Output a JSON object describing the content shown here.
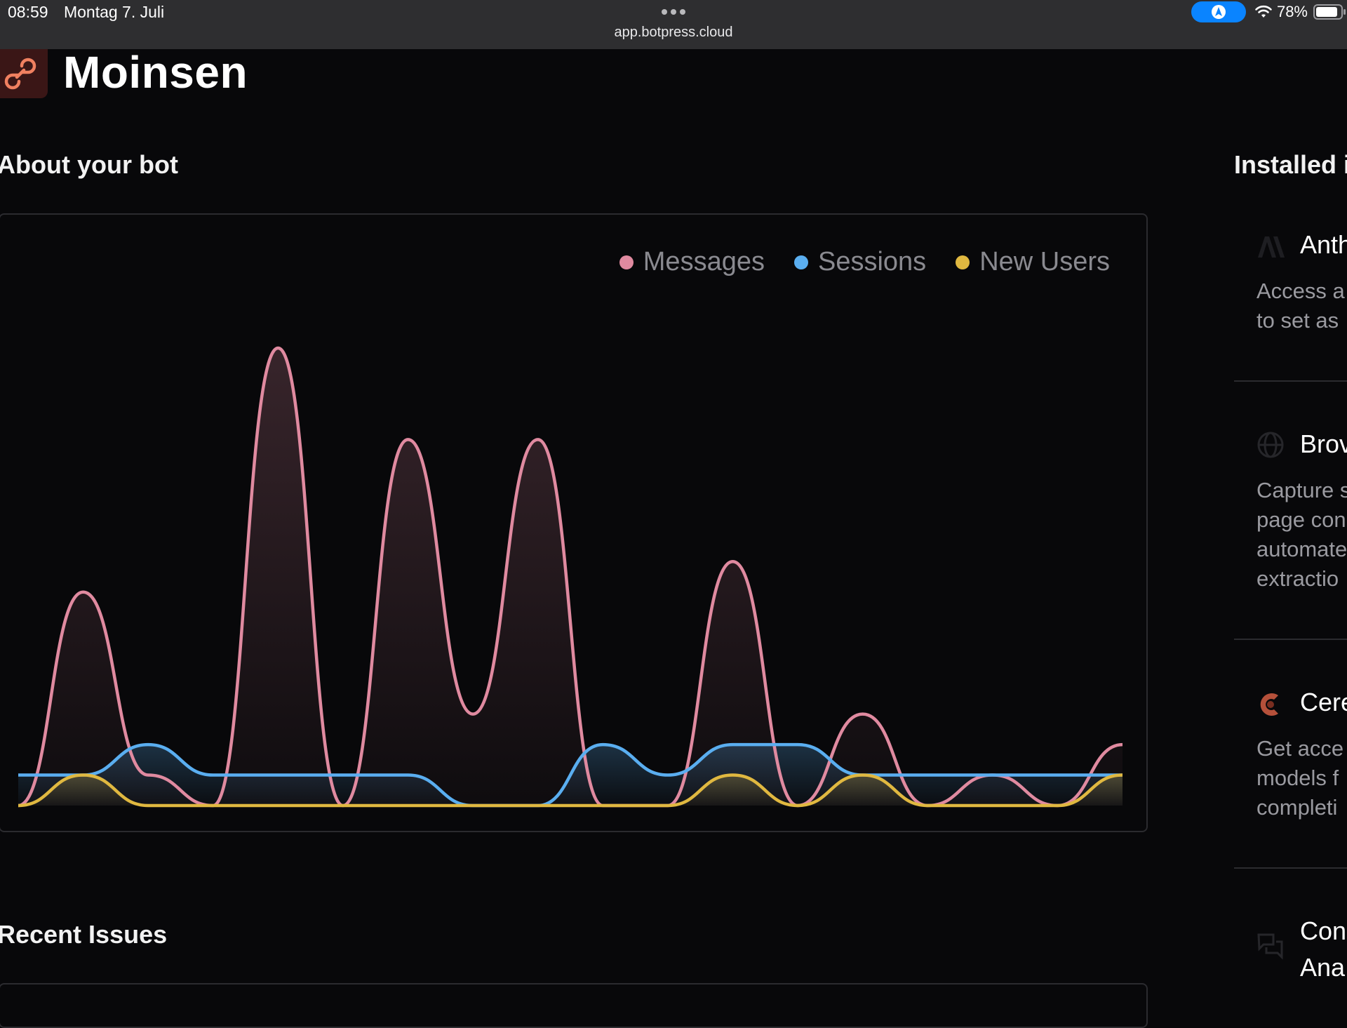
{
  "status_bar": {
    "time": "08:59",
    "date": "Montag 7. Juli",
    "url": "app.botpress.cloud",
    "battery": "78%"
  },
  "page": {
    "title": "Moinsen",
    "about_heading": "About your bot",
    "installed_heading": "Installed i",
    "recent_issues_heading": "Recent Issues"
  },
  "colors": {
    "messages": "#e08aa0",
    "sessions": "#5aaef0",
    "new_users": "#e0b840",
    "background": "#08080a",
    "accent_blue": "#0a84ff"
  },
  "chart_data": {
    "type": "area",
    "x": [
      0,
      1,
      2,
      3,
      4,
      5,
      6,
      7,
      8,
      9,
      10,
      11,
      12,
      13,
      14,
      15,
      16,
      17
    ],
    "series": [
      {
        "name": "Messages",
        "values": [
          0,
          7,
          1,
          0,
          15,
          0,
          12,
          3,
          12,
          0,
          0,
          8,
          0,
          3,
          0,
          1,
          0,
          2
        ]
      },
      {
        "name": "Sessions",
        "values": [
          1,
          1,
          2,
          1,
          1,
          1,
          1,
          0,
          0,
          2,
          1,
          2,
          2,
          1,
          1,
          1,
          1,
          1
        ]
      },
      {
        "name": "New Users",
        "values": [
          0,
          1,
          0,
          0,
          0,
          0,
          0,
          0,
          0,
          0,
          0,
          1,
          0,
          1,
          0,
          0,
          0,
          1
        ]
      }
    ],
    "ylim": [
      0,
      15
    ],
    "legend_position": "top-right",
    "grid": false,
    "xlabel": "",
    "ylabel": ""
  },
  "integrations": [
    {
      "icon": "anthropic-icon",
      "name": "Anth",
      "desc": [
        "Access a",
        "to set as"
      ]
    },
    {
      "icon": "globe-icon",
      "name": "Brov",
      "desc": [
        "Capture s",
        "page con",
        "automate",
        "extractio"
      ]
    },
    {
      "icon": "cerebras-icon",
      "name": "Cere",
      "desc": [
        "Get acce",
        "models f",
        "completi"
      ]
    },
    {
      "icon": "chat-bubbles-icon",
      "name": "Con",
      "name2": "Ana",
      "desc": []
    }
  ]
}
